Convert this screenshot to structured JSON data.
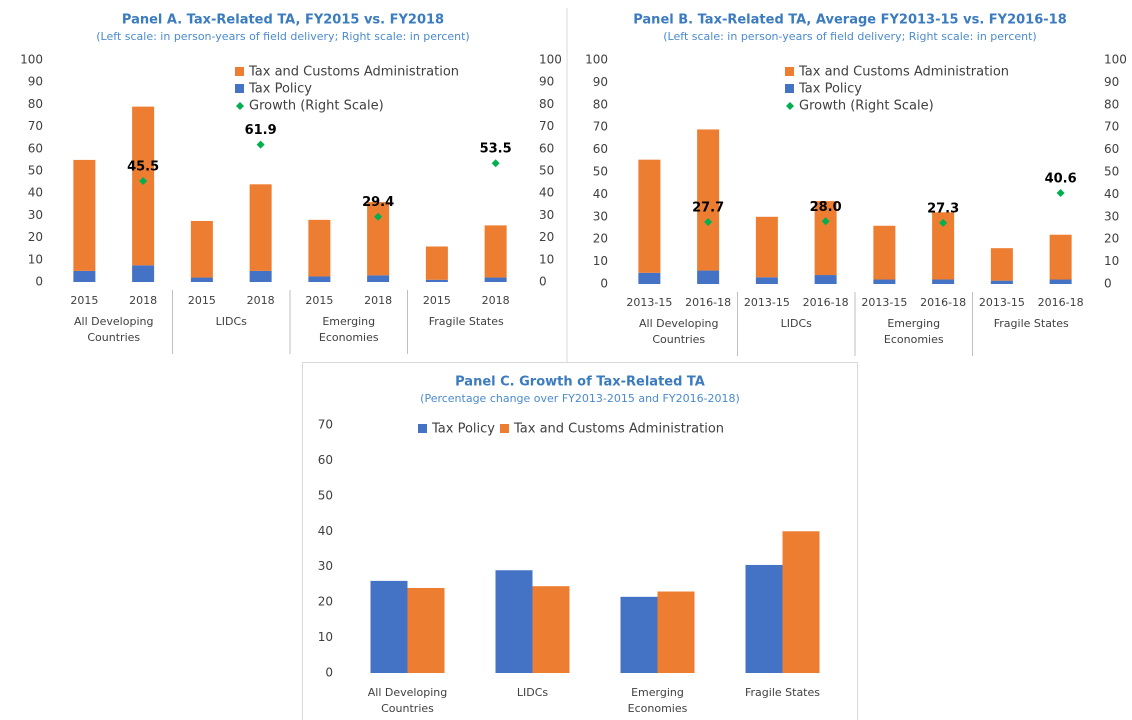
{
  "chart_data": [
    {
      "type": "stacked_bar",
      "title": "Panel A. Tax-Related TA, FY2015 vs. FY2018",
      "subtitle": "(Left scale: in person-years  of field delivery; Right scale: in percent)",
      "categories": [
        "2015",
        "2018",
        "2015",
        "2018",
        "2015",
        "2018",
        "2015",
        "2018"
      ],
      "groups": [
        "All Developing Countries",
        "LIDCs",
        "Emerging Economies",
        "Fragile States"
      ],
      "series": [
        {
          "name": "Tax and Customs Administration",
          "color": "#ed7d31",
          "values": [
            50,
            71.5,
            25.5,
            39,
            25.5,
            33,
            15,
            23.5
          ]
        },
        {
          "name": "Tax Policy",
          "color": "#4472c4",
          "values": [
            5,
            7.5,
            2,
            5,
            2.5,
            3,
            1,
            2
          ]
        },
        {
          "name": "Growth (Right Scale)",
          "color": "#00b050",
          "axis": "y2",
          "marker": "diamond",
          "values": [
            null,
            45.5,
            null,
            61.9,
            null,
            29.4,
            null,
            53.5
          ]
        }
      ],
      "ylim": [
        0,
        100
      ],
      "yticks": [
        0,
        10,
        20,
        30,
        40,
        50,
        60,
        70,
        80,
        90,
        100
      ],
      "y2lim": [
        0,
        100
      ],
      "y2ticks": [
        0,
        10,
        20,
        30,
        40,
        50,
        60,
        70,
        80,
        90,
        100
      ]
    },
    {
      "type": "stacked_bar",
      "title": "Panel B. Tax-Related TA, Average FY2013-15 vs. FY2016-18",
      "subtitle": "(Left scale: in person-years  of field delivery; Right scale: in percent)",
      "categories": [
        "2013-15",
        "2016-18",
        "2013-15",
        "2016-18",
        "2013-15",
        "2016-18",
        "2013-15",
        "2016-18"
      ],
      "groups": [
        "All Developing Countries",
        "LIDCs",
        "Emerging Economies",
        "Fragile States"
      ],
      "series": [
        {
          "name": "Tax and Customs Administration",
          "color": "#ed7d31",
          "values": [
            50.5,
            63,
            27,
            33,
            24,
            30,
            14.5,
            20
          ]
        },
        {
          "name": "Tax Policy",
          "color": "#4472c4",
          "values": [
            5,
            6,
            3,
            4,
            2,
            2,
            1.5,
            2
          ]
        },
        {
          "name": "Growth (Right Scale)",
          "color": "#00b050",
          "axis": "y2",
          "marker": "diamond",
          "values": [
            null,
            27.7,
            null,
            28.0,
            null,
            27.3,
            null,
            40.6
          ],
          "value_labels": [
            null,
            "27.7",
            null,
            "28.0",
            null,
            "27.3",
            null,
            "40.6"
          ]
        }
      ],
      "ylim": [
        0,
        100
      ],
      "yticks": [
        0,
        10,
        20,
        30,
        40,
        50,
        60,
        70,
        80,
        90,
        100
      ],
      "y2lim": [
        0,
        100
      ],
      "y2ticks": [
        0,
        10,
        20,
        30,
        40,
        50,
        60,
        70,
        80,
        90,
        100
      ]
    },
    {
      "type": "bar",
      "title": "Panel C. Growth of Tax-Related TA",
      "subtitle": "(Percentage change over FY2013-2015  and FY2016-2018)",
      "categories": [
        "All Developing Countries",
        "LIDCs",
        "Emerging Economies",
        "Fragile States"
      ],
      "series": [
        {
          "name": "Tax Policy",
          "color": "#4472c4",
          "values": [
            26,
            29,
            21.5,
            30.5
          ]
        },
        {
          "name": "Tax and Customs Administration",
          "color": "#ed7d31",
          "values": [
            24,
            24.5,
            23,
            40
          ]
        }
      ],
      "ylim": [
        0,
        70
      ],
      "yticks": [
        0,
        10,
        20,
        30,
        40,
        50,
        60,
        70
      ]
    }
  ]
}
